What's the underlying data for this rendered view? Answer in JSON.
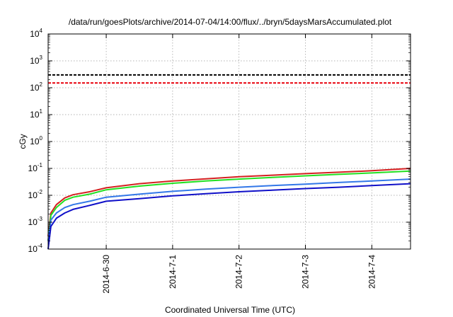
{
  "chart_data": {
    "type": "line",
    "title": "/data/run/goesPlots/archive/2014-07-04/14:00/flux/../bryn/5daysMarsAccumulated.plot",
    "xlabel": "Coordinated Universal Time (UTC)",
    "ylabel": "cGy",
    "yscale": "log",
    "ylim": [
      0.0001,
      10000
    ],
    "xlim": [
      "2014-06-29T03:00",
      "2014-07-04T14:00"
    ],
    "y_ticks": [
      {
        "base": "10",
        "exp": "-4",
        "value": 0.0001
      },
      {
        "base": "10",
        "exp": "-3",
        "value": 0.001
      },
      {
        "base": "10",
        "exp": "-2",
        "value": 0.01
      },
      {
        "base": "10",
        "exp": "-1",
        "value": 0.1
      },
      {
        "base": "10",
        "exp": "0",
        "value": 1
      },
      {
        "base": "10",
        "exp": "1",
        "value": 10
      },
      {
        "base": "10",
        "exp": "2",
        "value": 100
      },
      {
        "base": "10",
        "exp": "3",
        "value": 1000
      },
      {
        "base": "10",
        "exp": "4",
        "value": 10000
      }
    ],
    "x_ticks": [
      "2014-6-30",
      "2014-7-1",
      "2014-7-2",
      "2014-7-3",
      "2014-7-4"
    ],
    "grid": true,
    "thresholds": [
      {
        "value": 300,
        "color": "#000000"
      },
      {
        "value": 150,
        "color": "#e8000b"
      }
    ],
    "series": [
      {
        "color": "#d42020",
        "x": [
          "2014-06-29T03:00",
          "2014-06-29T04:00",
          "2014-06-29T06:00",
          "2014-06-29T09:00",
          "2014-06-29T12:00",
          "2014-06-29T18:00",
          "2014-06-30T00:00",
          "2014-06-30T12:00",
          "2014-07-01T00:00",
          "2014-07-01T12:00",
          "2014-07-02T00:00",
          "2014-07-02T12:00",
          "2014-07-03T00:00",
          "2014-07-03T12:00",
          "2014-07-04T00:00",
          "2014-07-04T14:00"
        ],
        "y": [
          0.0003,
          0.0022,
          0.0045,
          0.008,
          0.0105,
          0.0135,
          0.019,
          0.027,
          0.034,
          0.041,
          0.049,
          0.056,
          0.064,
          0.072,
          0.082,
          0.1
        ]
      },
      {
        "color": "#22e022",
        "x": [
          "2014-06-29T03:00",
          "2014-06-29T04:00",
          "2014-06-29T06:00",
          "2014-06-29T09:00",
          "2014-06-29T12:00",
          "2014-06-29T18:00",
          "2014-06-30T00:00",
          "2014-06-30T12:00",
          "2014-07-01T00:00",
          "2014-07-01T12:00",
          "2014-07-02T00:00",
          "2014-07-02T12:00",
          "2014-07-03T00:00",
          "2014-07-03T12:00",
          "2014-07-04T00:00",
          "2014-07-04T14:00"
        ],
        "y": [
          0.0002,
          0.0018,
          0.0035,
          0.0065,
          0.0085,
          0.011,
          0.016,
          0.022,
          0.028,
          0.034,
          0.04,
          0.046,
          0.053,
          0.06,
          0.068,
          0.08
        ]
      },
      {
        "color": "#3378e8",
        "x": [
          "2014-06-29T03:00",
          "2014-06-29T04:00",
          "2014-06-29T06:00",
          "2014-06-29T09:00",
          "2014-06-29T12:00",
          "2014-06-29T18:00",
          "2014-06-30T00:00",
          "2014-06-30T12:00",
          "2014-07-01T00:00",
          "2014-07-01T12:00",
          "2014-07-02T00:00",
          "2014-07-02T12:00",
          "2014-07-03T00:00",
          "2014-07-03T12:00",
          "2014-07-04T00:00",
          "2014-07-04T14:00"
        ],
        "y": [
          0.0002,
          0.0012,
          0.0022,
          0.0035,
          0.0045,
          0.006,
          0.0085,
          0.011,
          0.014,
          0.017,
          0.02,
          0.023,
          0.026,
          0.03,
          0.034,
          0.04
        ]
      },
      {
        "color": "#1010c8",
        "x": [
          "2014-06-29T03:00",
          "2014-06-29T04:00",
          "2014-06-29T06:00",
          "2014-06-29T09:00",
          "2014-06-29T12:00",
          "2014-06-29T18:00",
          "2014-06-30T00:00",
          "2014-06-30T12:00",
          "2014-07-01T00:00",
          "2014-07-01T12:00",
          "2014-07-02T00:00",
          "2014-07-02T12:00",
          "2014-07-03T00:00",
          "2014-07-03T12:00",
          "2014-07-04T00:00",
          "2014-07-04T14:00"
        ],
        "y": [
          0.0001,
          0.0007,
          0.0014,
          0.0022,
          0.003,
          0.0042,
          0.006,
          0.0075,
          0.0095,
          0.0115,
          0.0135,
          0.0155,
          0.0178,
          0.02,
          0.023,
          0.027
        ]
      }
    ]
  }
}
